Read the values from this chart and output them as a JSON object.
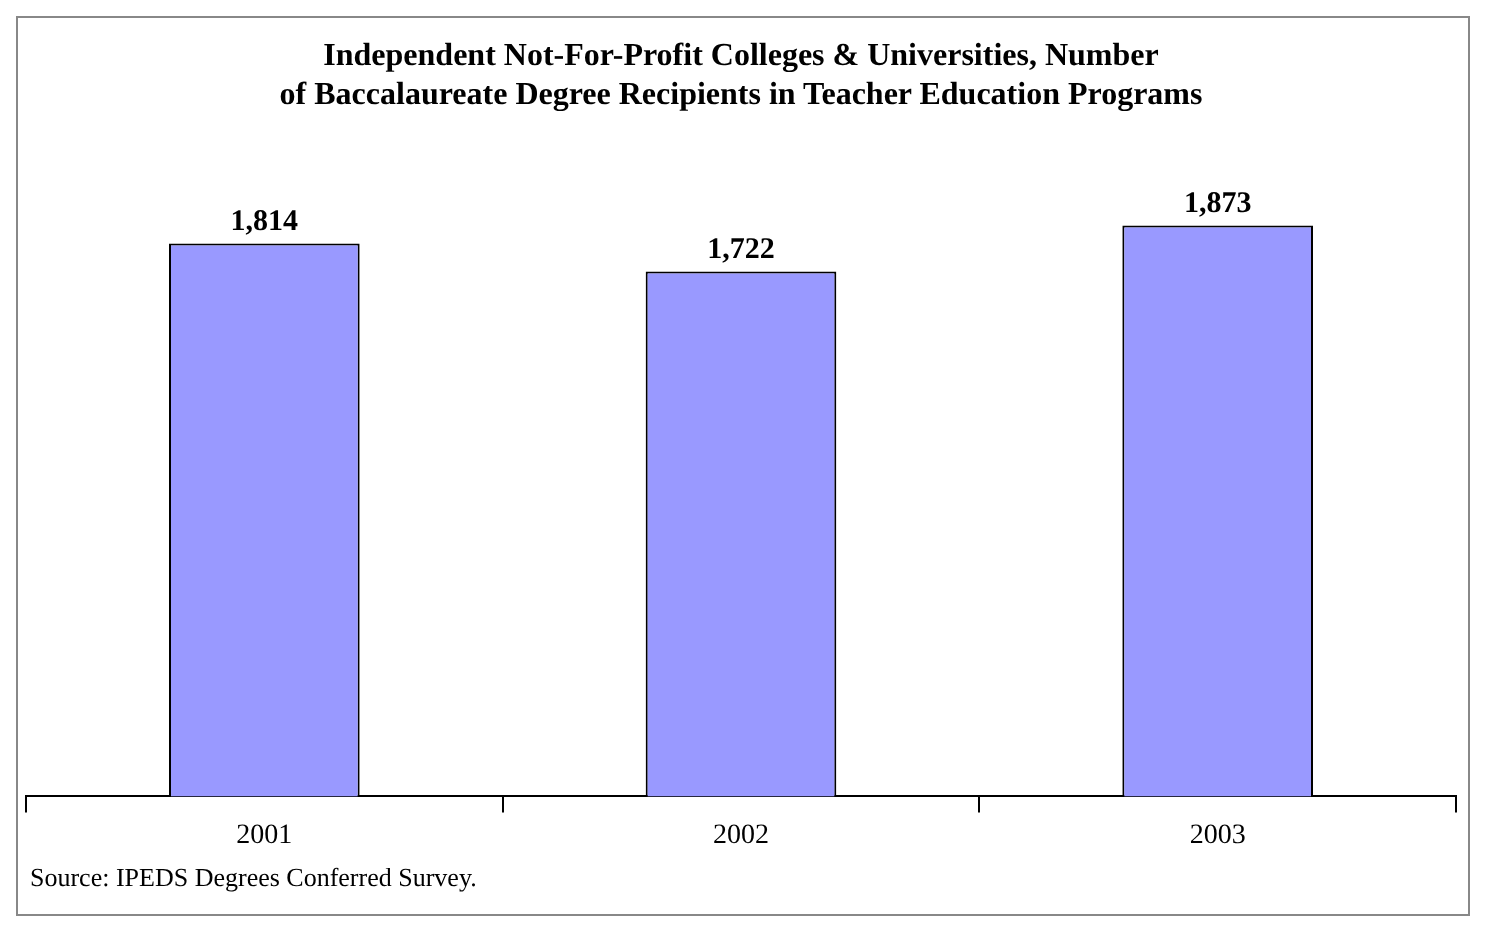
{
  "chart_data": {
    "type": "bar",
    "title": "Independent Not-For-Profit Colleges & Universities, Number of Baccalaureate Degree Recipients in Teacher Education Programs",
    "categories": [
      "2001",
      "2002",
      "2003"
    ],
    "values": [
      1814,
      1722,
      1873
    ],
    "value_labels": [
      "1,814",
      "1,722",
      "1,873"
    ],
    "color": "#9999ff",
    "annotations": [
      "Source: IPEDS Degrees Conferred Survey."
    ]
  }
}
